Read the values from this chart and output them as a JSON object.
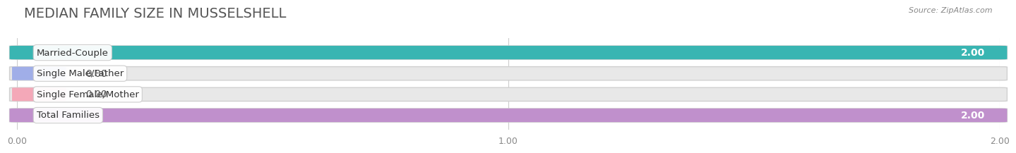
{
  "title": "MEDIAN FAMILY SIZE IN MUSSELSHELL",
  "source": "Source: ZipAtlas.com",
  "categories": [
    "Married-Couple",
    "Single Male/Father",
    "Single Female/Mother",
    "Total Families"
  ],
  "values": [
    2.0,
    0.0,
    0.0,
    2.0
  ],
  "bar_colors": [
    "#39b5b2",
    "#a0aee8",
    "#f4a8b8",
    "#c090cc"
  ],
  "xlim": [
    0,
    2.0
  ],
  "xticks": [
    0.0,
    1.0,
    2.0
  ],
  "xtick_labels": [
    "0.00",
    "1.00",
    "2.00"
  ],
  "background_color": "#ffffff",
  "bar_bg_color": "#e8e8e8",
  "bar_bg_edge_color": "#d0d0d0",
  "title_fontsize": 14,
  "bar_height": 0.62,
  "value_label_fontsize": 10,
  "cat_label_fontsize": 9.5
}
